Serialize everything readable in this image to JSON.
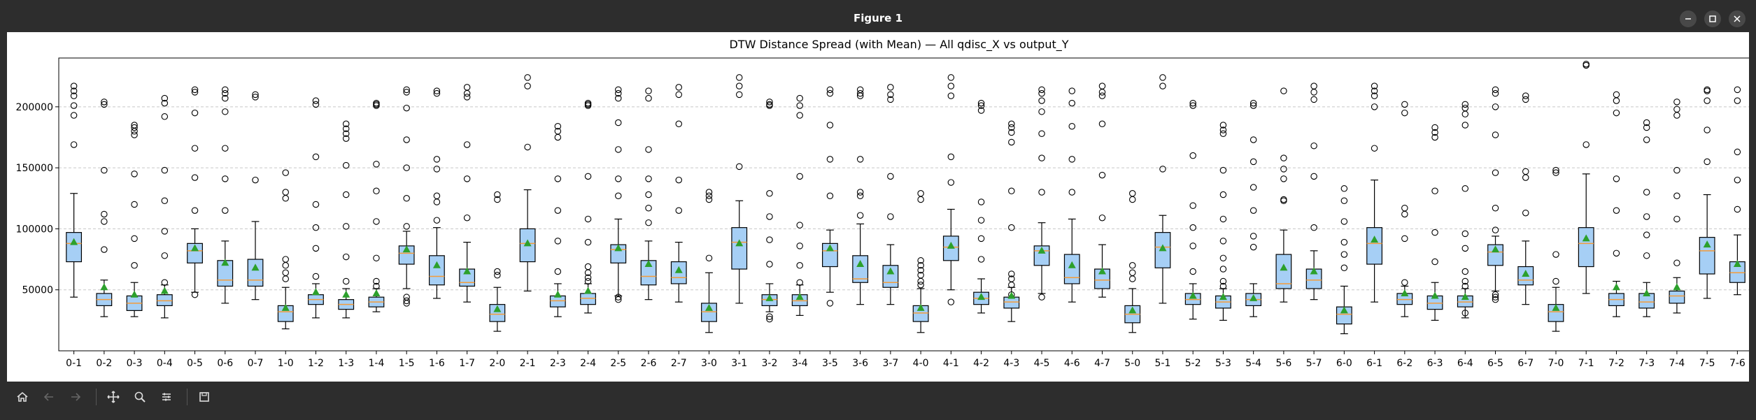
{
  "window": {
    "title": "Figure 1",
    "controls": [
      "minimize-icon",
      "maximize-icon",
      "close-icon"
    ]
  },
  "toolbar": {
    "tools": [
      "home-icon",
      "back-icon",
      "forward-icon",
      "pan-icon",
      "zoom-icon",
      "configure-subplots-icon",
      "save-icon"
    ]
  },
  "colors": {
    "box_fill": "#a6cff5",
    "median": "#f39c3b",
    "mean_marker": "#2ca02c",
    "grid": "#b0b0b0"
  },
  "chart_data": {
    "type": "box",
    "title": "DTW Distance Spread (with Mean) — All qdisc_X vs output_Y",
    "xlabel": "",
    "ylabel": "",
    "ylim": [
      0,
      240000
    ],
    "yticks": [
      50000,
      100000,
      150000,
      200000
    ],
    "ytick_labels": [
      "50000",
      "100000",
      "150000",
      "200000"
    ],
    "grid": "horizontal dashed",
    "categories": [
      "0-1",
      "0-2",
      "0-3",
      "0-4",
      "0-5",
      "0-6",
      "0-7",
      "1-0",
      "1-2",
      "1-3",
      "1-4",
      "1-5",
      "1-6",
      "1-7",
      "2-0",
      "2-1",
      "2-3",
      "2-4",
      "2-5",
      "2-6",
      "2-7",
      "3-0",
      "3-1",
      "3-2",
      "3-4",
      "3-5",
      "3-6",
      "3-7",
      "4-0",
      "4-1",
      "4-2",
      "4-3",
      "4-5",
      "4-6",
      "4-7",
      "5-0",
      "5-1",
      "5-2",
      "5-3",
      "5-4",
      "5-6",
      "5-7",
      "6-0",
      "6-1",
      "6-2",
      "6-3",
      "6-4",
      "6-5",
      "6-7",
      "7-0",
      "7-1",
      "7-2",
      "7-3",
      "7-4",
      "7-5",
      "7-6"
    ],
    "boxes": [
      {
        "q1": 73000,
        "median": 88000,
        "q3": 97000,
        "wlo": 44000,
        "whi": 129000,
        "mean": 89000,
        "fliers": [
          169000,
          193000,
          201000,
          209000,
          213000,
          217000
        ]
      },
      {
        "q1": 37000,
        "median": 42000,
        "q3": 47000,
        "wlo": 28000,
        "whi": 58000,
        "mean": 52000,
        "fliers": [
          83000,
          106000,
          112000,
          148000,
          202000,
          204000
        ]
      },
      {
        "q1": 33000,
        "median": 39000,
        "q3": 45000,
        "wlo": 28000,
        "whi": 56000,
        "mean": 46000,
        "fliers": [
          70000,
          92000,
          120000,
          145000,
          177000,
          180000,
          183000,
          185000
        ]
      },
      {
        "q1": 37000,
        "median": 41000,
        "q3": 46000,
        "wlo": 27000,
        "whi": 54000,
        "mean": 49000,
        "fliers": [
          56000,
          78000,
          98000,
          123000,
          148000,
          192000,
          203000,
          207000
        ]
      },
      {
        "q1": 72000,
        "median": 82000,
        "q3": 88000,
        "wlo": 48000,
        "whi": 100000,
        "mean": 84000,
        "fliers": [
          46000,
          115000,
          142000,
          166000,
          195000,
          212000,
          214000
        ]
      },
      {
        "q1": 53000,
        "median": 58000,
        "q3": 74000,
        "wlo": 39000,
        "whi": 90000,
        "mean": 72000,
        "fliers": [
          115000,
          141000,
          166000,
          196000,
          207000,
          211000,
          214000
        ]
      },
      {
        "q1": 53000,
        "median": 58000,
        "q3": 75000,
        "wlo": 42000,
        "whi": 106000,
        "mean": 68000,
        "fliers": [
          140000,
          208000,
          210000
        ]
      },
      {
        "q1": 24000,
        "median": 32000,
        "q3": 37000,
        "wlo": 18000,
        "whi": 52000,
        "mean": 35000,
        "fliers": [
          59000,
          64000,
          70000,
          75000,
          125000,
          130000,
          146000
        ]
      },
      {
        "q1": 38000,
        "median": 42000,
        "q3": 46000,
        "wlo": 27000,
        "whi": 55000,
        "mean": 48000,
        "fliers": [
          61000,
          84000,
          101000,
          120000,
          159000,
          202000,
          205000
        ]
      },
      {
        "q1": 34000,
        "median": 38000,
        "q3": 42000,
        "wlo": 27000,
        "whi": 51000,
        "mean": 46000,
        "fliers": [
          57000,
          77000,
          102000,
          128000,
          152000,
          174000,
          178000,
          182000,
          186000
        ]
      },
      {
        "q1": 36000,
        "median": 40000,
        "q3": 44000,
        "wlo": 32000,
        "whi": 51000,
        "mean": 47000,
        "fliers": [
          53000,
          57000,
          76000,
          106000,
          131000,
          153000,
          201000,
          202000,
          203000
        ]
      },
      {
        "q1": 71000,
        "median": 80000,
        "q3": 86000,
        "wlo": 51000,
        "whi": 98000,
        "mean": 83000,
        "fliers": [
          39000,
          41000,
          44000,
          102000,
          125000,
          150000,
          173000,
          199000,
          212000,
          214000
        ]
      },
      {
        "q1": 54000,
        "median": 61000,
        "q3": 78000,
        "wlo": 43000,
        "whi": 101000,
        "mean": 70000,
        "fliers": [
          107000,
          122000,
          127000,
          149000,
          157000,
          211000,
          213000
        ]
      },
      {
        "q1": 53000,
        "median": 56000,
        "q3": 67000,
        "wlo": 40000,
        "whi": 89000,
        "mean": 65000,
        "fliers": [
          109000,
          141000,
          169000,
          208000,
          211000,
          216000
        ]
      },
      {
        "q1": 24000,
        "median": 30000,
        "q3": 38000,
        "wlo": 16000,
        "whi": 52000,
        "mean": 34000,
        "fliers": [
          62000,
          65000,
          124000,
          128000
        ]
      },
      {
        "q1": 73000,
        "median": 88000,
        "q3": 100000,
        "wlo": 49000,
        "whi": 132000,
        "mean": 88000,
        "fliers": [
          167000,
          217000,
          224000
        ]
      },
      {
        "q1": 36000,
        "median": 41000,
        "q3": 45000,
        "wlo": 28000,
        "whi": 55000,
        "mean": 46000,
        "fliers": [
          65000,
          90000,
          115000,
          141000,
          175000,
          180000,
          184000
        ]
      },
      {
        "q1": 38000,
        "median": 43000,
        "q3": 47000,
        "wlo": 31000,
        "whi": 55000,
        "mean": 49000,
        "fliers": [
          57000,
          60000,
          64000,
          69000,
          89000,
          108000,
          143000,
          201000,
          202000,
          203000
        ]
      },
      {
        "q1": 72000,
        "median": 83000,
        "q3": 87000,
        "wlo": 45000,
        "whi": 108000,
        "mean": 84000,
        "fliers": [
          42000,
          44000,
          127000,
          141000,
          165000,
          187000,
          207000,
          211000,
          214000
        ]
      },
      {
        "q1": 54000,
        "median": 61000,
        "q3": 74000,
        "wlo": 42000,
        "whi": 90000,
        "mean": 71000,
        "fliers": [
          105000,
          117000,
          128000,
          141000,
          165000,
          207000,
          213000
        ]
      },
      {
        "q1": 55000,
        "median": 60000,
        "q3": 73000,
        "wlo": 40000,
        "whi": 89000,
        "mean": 66000,
        "fliers": [
          115000,
          140000,
          186000,
          210000,
          216000
        ]
      },
      {
        "q1": 24000,
        "median": 32000,
        "q3": 39000,
        "wlo": 15000,
        "whi": 64000,
        "mean": 35000,
        "fliers": [
          76000,
          124000,
          127000,
          130000
        ]
      },
      {
        "q1": 67000,
        "median": 89000,
        "q3": 101000,
        "wlo": 39000,
        "whi": 123000,
        "mean": 88000,
        "fliers": [
          151000,
          210000,
          217000,
          224000
        ]
      },
      {
        "q1": 37000,
        "median": 42000,
        "q3": 46000,
        "wlo": 32000,
        "whi": 55000,
        "mean": 43000,
        "fliers": [
          26000,
          28000,
          71000,
          91000,
          110000,
          129000,
          201000,
          202000,
          204000
        ]
      },
      {
        "q1": 37000,
        "median": 41000,
        "q3": 46000,
        "wlo": 29000,
        "whi": 54000,
        "mean": 44000,
        "fliers": [
          56000,
          70000,
          86000,
          103000,
          143000,
          193000,
          201000,
          207000
        ]
      },
      {
        "q1": 69000,
        "median": 82000,
        "q3": 88000,
        "wlo": 48000,
        "whi": 99000,
        "mean": 84000,
        "fliers": [
          39000,
          127000,
          157000,
          185000,
          211000,
          214000
        ]
      },
      {
        "q1": 56000,
        "median": 59000,
        "q3": 78000,
        "wlo": 38000,
        "whi": 104000,
        "mean": 71000,
        "fliers": [
          111000,
          127000,
          130000,
          157000,
          209000,
          211000,
          214000
        ]
      },
      {
        "q1": 52000,
        "median": 56000,
        "q3": 70000,
        "wlo": 38000,
        "whi": 87000,
        "mean": 65000,
        "fliers": [
          110000,
          143000,
          206000,
          210000,
          216000
        ]
      },
      {
        "q1": 24000,
        "median": 31000,
        "q3": 37000,
        "wlo": 15000,
        "whi": 51000,
        "mean": 35000,
        "fliers": [
          54000,
          57000,
          62000,
          66000,
          70000,
          74000,
          124000,
          129000
        ]
      },
      {
        "q1": 74000,
        "median": 85000,
        "q3": 94000,
        "wlo": 50000,
        "whi": 116000,
        "mean": 86000,
        "fliers": [
          40000,
          138000,
          159000,
          209000,
          217000,
          224000
        ]
      },
      {
        "q1": 38000,
        "median": 43000,
        "q3": 48000,
        "wlo": 31000,
        "whi": 59000,
        "mean": 44000,
        "fliers": [
          75000,
          92000,
          107000,
          122000,
          197000,
          201000,
          203000
        ]
      },
      {
        "q1": 35000,
        "median": 40000,
        "q3": 44000,
        "wlo": 24000,
        "whi": 52000,
        "mean": 45000,
        "fliers": [
          46000,
          54000,
          59000,
          63000,
          101000,
          131000,
          171000,
          179000,
          183000,
          186000
        ]
      },
      {
        "q1": 70000,
        "median": 82000,
        "q3": 86000,
        "wlo": 47000,
        "whi": 105000,
        "mean": 82000,
        "fliers": [
          44000,
          130000,
          158000,
          178000,
          196000,
          205000,
          211000,
          214000
        ]
      },
      {
        "q1": 55000,
        "median": 60000,
        "q3": 79000,
        "wlo": 40000,
        "whi": 108000,
        "mean": 70000,
        "fliers": [
          130000,
          157000,
          184000,
          203000,
          213000
        ]
      },
      {
        "q1": 51000,
        "median": 58000,
        "q3": 67000,
        "wlo": 44000,
        "whi": 87000,
        "mean": 65000,
        "fliers": [
          109000,
          144000,
          186000,
          209000,
          212000,
          217000
        ]
      },
      {
        "q1": 23000,
        "median": 30000,
        "q3": 37000,
        "wlo": 15000,
        "whi": 51000,
        "mean": 33000,
        "fliers": [
          59000,
          64000,
          70000,
          124000,
          129000
        ]
      },
      {
        "q1": 68000,
        "median": 85000,
        "q3": 97000,
        "wlo": 39000,
        "whi": 111000,
        "mean": 84000,
        "fliers": [
          149000,
          217000,
          224000
        ]
      },
      {
        "q1": 38000,
        "median": 42000,
        "q3": 47000,
        "wlo": 26000,
        "whi": 55000,
        "mean": 45000,
        "fliers": [
          65000,
          86000,
          101000,
          119000,
          160000,
          201000,
          203000
        ]
      },
      {
        "q1": 35000,
        "median": 40000,
        "q3": 45000,
        "wlo": 25000,
        "whi": 51000,
        "mean": 44000,
        "fliers": [
          53000,
          57000,
          67000,
          76000,
          90000,
          108000,
          128000,
          148000,
          178000,
          181000,
          185000
        ]
      },
      {
        "q1": 37000,
        "median": 42000,
        "q3": 47000,
        "wlo": 28000,
        "whi": 55000,
        "mean": 43000,
        "fliers": [
          85000,
          94000,
          115000,
          134000,
          155000,
          173000,
          201000,
          203000
        ]
      },
      {
        "q1": 51000,
        "median": 55000,
        "q3": 79000,
        "wlo": 40000,
        "whi": 99000,
        "mean": 68000,
        "fliers": [
          123000,
          124000,
          141000,
          149000,
          158000,
          213000
        ]
      },
      {
        "q1": 51000,
        "median": 58000,
        "q3": 67000,
        "wlo": 42000,
        "whi": 82000,
        "mean": 65000,
        "fliers": [
          101000,
          143000,
          168000,
          206000,
          212000,
          217000
        ]
      },
      {
        "q1": 22000,
        "median": 30000,
        "q3": 36000,
        "wlo": 14000,
        "whi": 53000,
        "mean": 33000,
        "fliers": [
          68000,
          79000,
          89000,
          106000,
          123000,
          133000
        ]
      },
      {
        "q1": 71000,
        "median": 88000,
        "q3": 101000,
        "wlo": 40000,
        "whi": 140000,
        "mean": 91000,
        "fliers": [
          166000,
          200000,
          209000,
          213000,
          217000
        ]
      },
      {
        "q1": 38000,
        "median": 42000,
        "q3": 47000,
        "wlo": 28000,
        "whi": 53000,
        "mean": 47000,
        "fliers": [
          56000,
          92000,
          112000,
          117000,
          195000,
          202000
        ]
      },
      {
        "q1": 34000,
        "median": 39000,
        "q3": 45000,
        "wlo": 25000,
        "whi": 56000,
        "mean": 45000,
        "fliers": [
          73000,
          97000,
          131000,
          175000,
          179000,
          183000
        ]
      },
      {
        "q1": 36000,
        "median": 40000,
        "q3": 45000,
        "wlo": 27000,
        "whi": 51000,
        "mean": 44000,
        "fliers": [
          31000,
          53000,
          57000,
          65000,
          84000,
          96000,
          133000,
          185000,
          194000,
          199000,
          202000
        ]
      },
      {
        "q1": 70000,
        "median": 81000,
        "q3": 87000,
        "wlo": 49000,
        "whi": 94000,
        "mean": 83000,
        "fliers": [
          42000,
          44000,
          46000,
          99000,
          117000,
          146000,
          177000,
          200000,
          211000,
          214000
        ]
      },
      {
        "q1": 54000,
        "median": 58000,
        "q3": 69000,
        "wlo": 38000,
        "whi": 90000,
        "mean": 63000,
        "fliers": [
          113000,
          142000,
          147000,
          206000,
          209000
        ]
      },
      {
        "q1": 24000,
        "median": 32000,
        "q3": 38000,
        "wlo": 16000,
        "whi": 52000,
        "mean": 35000,
        "fliers": [
          57000,
          79000,
          146000,
          148000
        ]
      },
      {
        "q1": 69000,
        "median": 88000,
        "q3": 101000,
        "wlo": 47000,
        "whi": 145000,
        "mean": 92000,
        "fliers": [
          169000,
          234000,
          235000
        ]
      },
      {
        "q1": 37000,
        "median": 42000,
        "q3": 47000,
        "wlo": 28000,
        "whi": 57000,
        "mean": 52000,
        "fliers": [
          80000,
          115000,
          141000,
          195000,
          205000,
          210000
        ]
      },
      {
        "q1": 35000,
        "median": 40000,
        "q3": 47000,
        "wlo": 28000,
        "whi": 56000,
        "mean": 47000,
        "fliers": [
          78000,
          95000,
          110000,
          130000,
          173000,
          183000,
          187000
        ]
      },
      {
        "q1": 39000,
        "median": 45000,
        "q3": 49000,
        "wlo": 31000,
        "whi": 60000,
        "mean": 52000,
        "fliers": [
          72000,
          108000,
          127000,
          148000,
          193000,
          198000,
          204000
        ]
      },
      {
        "q1": 63000,
        "median": 82000,
        "q3": 93000,
        "wlo": 43000,
        "whi": 128000,
        "mean": 87000,
        "fliers": [
          155000,
          181000,
          205000,
          213000,
          214000
        ]
      },
      {
        "q1": 56000,
        "median": 64000,
        "q3": 73000,
        "wlo": 46000,
        "whi": 95000,
        "mean": 71000,
        "fliers": [
          116000,
          140000,
          163000,
          205000,
          214000
        ]
      }
    ]
  }
}
